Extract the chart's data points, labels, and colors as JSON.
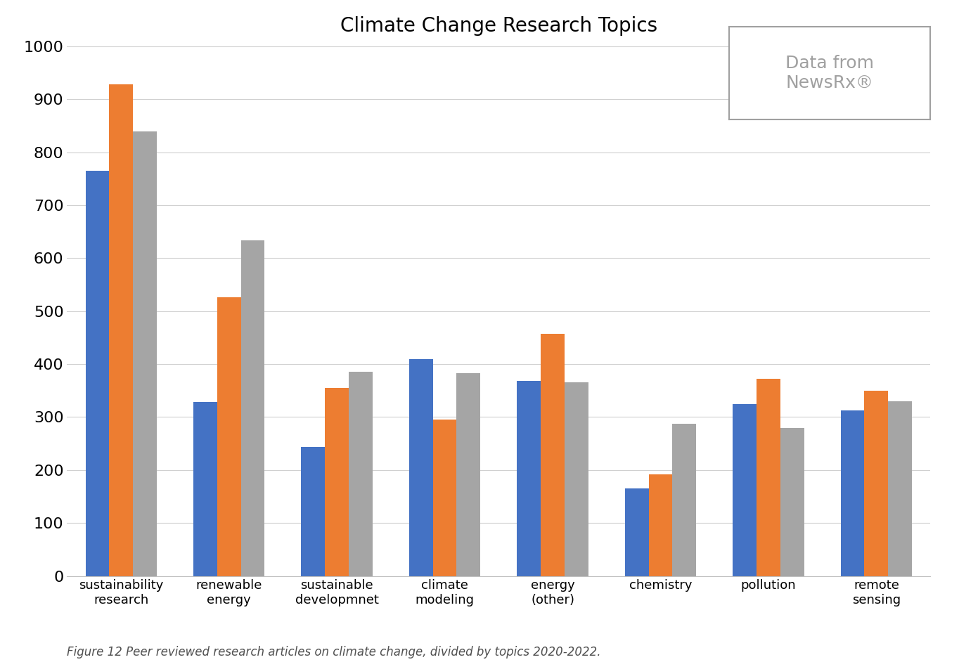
{
  "title": "Climate Change Research Topics",
  "categories": [
    "sustainability\nresearch",
    "renewable\nenergy",
    "sustainable\ndevelopmnet",
    "climate\nmodeling",
    "energy\n(other)",
    "chemistry",
    "pollution",
    "remote\nsensing"
  ],
  "series": {
    "2020": [
      765,
      328,
      243,
      410,
      368,
      165,
      325,
      312
    ],
    "2021": [
      928,
      526,
      355,
      295,
      457,
      192,
      372,
      350
    ],
    "2022": [
      840,
      634,
      385,
      383,
      365,
      288,
      280,
      330
    ]
  },
  "colors": {
    "2020": "#4472C4",
    "2021": "#ED7D31",
    "2022": "#A5A5A5"
  },
  "ylim": [
    0,
    1000
  ],
  "yticks": [
    0,
    100,
    200,
    300,
    400,
    500,
    600,
    700,
    800,
    900,
    1000
  ],
  "ylabel": "",
  "xlabel": "",
  "caption": "Figure 12 Peer reviewed research articles on climate change, divided by topics 2020-2022.",
  "annotation_title": "Data from\nNewsRx®",
  "background_color": "#FFFFFF",
  "grid_color": "#D0D0D0",
  "bar_width": 0.22,
  "title_fontsize": 20,
  "caption_fontsize": 12,
  "annotation_fontsize": 18,
  "ytick_fontsize": 16,
  "xtick_fontsize": 13
}
